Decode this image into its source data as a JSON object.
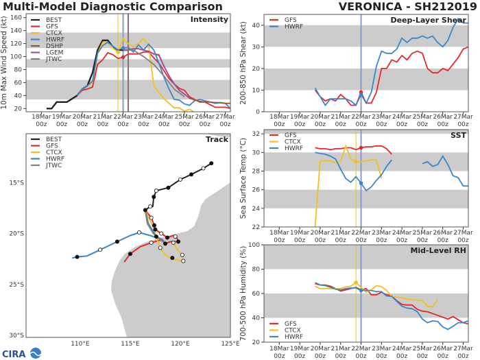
{
  "header": {
    "title": "Multi-Model Diagnostic Comparison",
    "storm": "VERONICA - SH212019"
  },
  "logo_text": "CIRA",
  "colors": {
    "BEST": "#222222",
    "GFS": "#e8262a",
    "CTCX": "#f2c01e",
    "HWRF": "#3a86c8",
    "DSHP": "#8b5a3c",
    "LGEM": "#a64ca6",
    "JTWC": "#808080",
    "band": "#cccccc",
    "vline_ctcx": "#f2c01e",
    "vline_hwrf": "#8a9cc4",
    "vline_other": "#8a6f72"
  },
  "x_axis": {
    "ticks": [
      "18Mar",
      "19Mar",
      "20Mar",
      "21Mar",
      "22Mar",
      "23Mar",
      "24Mar",
      "25Mar",
      "26Mar",
      "27Mar"
    ],
    "subticks": [
      "00z",
      "00z",
      "00z",
      "00z",
      "00z",
      "00z",
      "00z",
      "00z",
      "00z",
      "00z"
    ],
    "range": [
      "17Mar06z",
      "27Mar06z"
    ]
  },
  "chart_data": [
    {
      "id": "intensity",
      "type": "line",
      "title": "Intensity",
      "ylabel": "10m Max Wind Speed (kt)",
      "ylim": [
        15,
        166
      ],
      "yticks": [
        "20",
        "40",
        "60",
        "80",
        "100",
        "120",
        "140",
        "160"
      ],
      "bands": [
        [
          34,
          64
        ],
        [
          83,
          96
        ],
        [
          113,
          137
        ]
      ],
      "vlines": [
        {
          "t": "21Mar18z",
          "color": "vline_ctcx"
        },
        {
          "t": "22Mar00z",
          "color": "vline_hwrf"
        },
        {
          "t": "22Mar06z",
          "color": "vline_other"
        }
      ],
      "legend": [
        "BEST",
        "GFS",
        "CTCX",
        "HWRF",
        "DSHP",
        "LGEM",
        "JTWC"
      ],
      "series": [
        {
          "name": "BEST",
          "t0": "18Mar06z",
          "step_h": 6,
          "values": [
            20,
            20,
            30,
            30,
            30,
            35,
            40,
            50,
            55,
            75,
            110,
            125,
            125,
            115,
            110,
            110,
            110
          ]
        },
        {
          "name": "GFS",
          "t0": "19Mar18z",
          "step_h": 6,
          "values": [
            40,
            48,
            50,
            53,
            88,
            95,
            106,
            103,
            97,
            99,
            104,
            104,
            104,
            107,
            107,
            98,
            90,
            78,
            66,
            58,
            51,
            48,
            38,
            34,
            30,
            30,
            26,
            22,
            22,
            22,
            20
          ],
          "marker_at": "22Mar00z"
        },
        {
          "name": "CTCX",
          "t0": "19Mar18z",
          "step_h": 6,
          "values": [
            40,
            50,
            55,
            60,
            105,
            122,
            122,
            113,
            107,
            128,
            120,
            115,
            120,
            128,
            118,
            55,
            45,
            35,
            28,
            21,
            21,
            16,
            19,
            14
          ],
          "marker_at": "21Mar18z"
        },
        {
          "name": "HWRF",
          "t0": "19Mar18z",
          "step_h": 6,
          "values": [
            40,
            50,
            55,
            62,
            105,
            117,
            122,
            116,
            110,
            113,
            114,
            107,
            118,
            110,
            119,
            110,
            90,
            68,
            50,
            34,
            33,
            27,
            25,
            32,
            34,
            32,
            30,
            28,
            29,
            28,
            20
          ],
          "marker_at": "22Mar00z"
        },
        {
          "name": "DSHP",
          "t0": "22Mar00z",
          "step_h": 6,
          "values": [
            110,
            111,
            112,
            112,
            110,
            108,
            104,
            102,
            85,
            70,
            58,
            48,
            42,
            36,
            33,
            31,
            30,
            30,
            29,
            29,
            28,
            28
          ]
        },
        {
          "name": "LGEM",
          "t0": "22Mar00z",
          "step_h": 6,
          "values": [
            110,
            111,
            112,
            112,
            110,
            108,
            104,
            103,
            85,
            70,
            58,
            48,
            42,
            36
          ]
        },
        {
          "name": "JTWC",
          "t0": "22Mar00z",
          "step_h": 12,
          "values": [
            110,
            110,
            100,
            88,
            70,
            50,
            38
          ]
        }
      ]
    },
    {
      "id": "shear",
      "type": "line",
      "title": "Deep-Layer Shear",
      "ylabel": "200-850 hPa Shear (kt)",
      "ylim": [
        0,
        45
      ],
      "yticks": [
        "0",
        "10",
        "20",
        "30",
        "40"
      ],
      "bands": [
        [
          10,
          20
        ],
        [
          30,
          40
        ]
      ],
      "vlines": [
        {
          "t": "22Mar00z",
          "color": "vline_hwrf"
        }
      ],
      "legend": [
        "GFS",
        "HWRF"
      ],
      "series": [
        {
          "name": "GFS",
          "t0": "19Mar18z",
          "step_h": 6,
          "values": [
            10,
            7,
            5,
            6,
            5,
            8,
            6,
            3,
            3,
            9,
            4,
            4,
            9,
            20,
            20,
            24,
            23,
            26,
            24,
            27,
            28,
            27,
            20,
            18,
            18,
            20,
            19,
            22,
            25,
            29,
            30
          ],
          "marker_at": "22Mar00z"
        },
        {
          "name": "HWRF",
          "t0": "19Mar18z",
          "step_h": 6,
          "values": [
            11,
            7,
            3,
            6,
            6,
            6,
            6,
            5,
            3,
            8,
            4,
            9,
            21,
            28,
            27,
            27,
            29,
            34,
            32,
            34,
            34,
            35,
            34,
            35,
            32,
            30,
            33,
            39,
            43,
            41,
            41
          ],
          "marker_at": "22Mar00z"
        }
      ]
    },
    {
      "id": "sst",
      "type": "line",
      "title": "SST",
      "ylabel": "Sea Surface Temp (°C)",
      "ylim": [
        22,
        32.45
      ],
      "yticks": [
        "22",
        "24",
        "26",
        "28",
        "30",
        "32"
      ],
      "bands": [
        [
          24,
          26
        ],
        [
          28,
          30
        ],
        [
          32,
          32.45
        ]
      ],
      "vlines": [
        {
          "t": "21Mar18z",
          "color": "vline_ctcx"
        },
        {
          "t": "22Mar00z",
          "color": "vline_hwrf"
        }
      ],
      "legend": [
        "GFS",
        "CTCX",
        "HWRF"
      ],
      "series": [
        {
          "name": "GFS",
          "t0": "19Mar18z",
          "step_h": 6,
          "values": [
            30.5,
            30.4,
            30.4,
            30.3,
            30.4,
            30.4,
            30.5,
            30.5,
            30.3,
            30.5,
            30.6,
            30.6,
            30.7,
            30.7,
            30.4,
            29.8
          ],
          "marker_at": "22Mar00z"
        },
        {
          "name": "CTCX",
          "t0": "19Mar18z",
          "step_h": 6,
          "values": [
            22,
            29.1,
            29.1,
            29.1,
            28.9,
            29.0,
            30.7,
            29.3,
            29.0,
            29.0,
            29.1,
            29.2,
            29.2,
            27.2
          ],
          "marker_at": "21Mar18z"
        },
        {
          "name": "HWRF",
          "t0": "19Mar18z",
          "step_h": 6,
          "values": [
            30.0,
            29.9,
            29.8,
            29.6,
            29.3,
            28.2,
            27.2,
            26.8,
            27.4,
            26.7,
            25.9,
            26.3,
            27.0,
            27.6,
            28.5,
            29.2,
            null,
            null,
            null,
            null,
            null,
            28.8,
            29.0,
            28.5,
            28.7,
            29.6,
            28.7,
            27.5,
            27.3,
            26.4,
            26.4
          ],
          "marker_at": "22Mar00z"
        }
      ]
    },
    {
      "id": "rh",
      "type": "line",
      "title": "Mid-Level RH",
      "ylabel": "700-500 hPa Humidity (%)",
      "ylim": [
        20,
        100
      ],
      "yticks": [
        "20",
        "40",
        "60",
        "80",
        "100"
      ],
      "bands": [
        [
          40,
          60
        ],
        [
          80,
          100
        ]
      ],
      "vlines": [
        {
          "t": "21Mar18z",
          "color": "vline_ctcx"
        },
        {
          "t": "22Mar00z",
          "color": "vline_hwrf"
        }
      ],
      "legend": [
        "GFS",
        "CTCX",
        "HWRF"
      ],
      "series": [
        {
          "name": "GFS",
          "t0": "19Mar18z",
          "step_h": 6,
          "values": [
            68,
            67,
            67,
            66,
            64,
            62,
            63,
            64,
            65,
            63,
            64,
            59,
            59,
            61,
            59,
            58,
            54,
            51,
            50.5,
            50.5,
            47,
            45.5,
            45,
            43.5,
            42,
            40.5,
            39,
            41,
            38.5,
            36,
            35
          ]
        },
        {
          "name": "CTCX",
          "t0": "19Mar18z",
          "step_h": 6,
          "values": [
            66,
            64,
            64,
            64,
            64,
            64,
            65.5,
            66,
            69,
            65,
            61,
            63,
            66.5,
            65.5,
            62.5,
            57.5,
            57,
            56.5,
            55.5,
            55,
            54.5,
            54,
            49.5,
            49,
            55
          ],
          "marker_at": "21Mar18z"
        },
        {
          "name": "HWRF",
          "t0": "19Mar18z",
          "step_h": 6,
          "values": [
            69,
            67,
            66.5,
            65,
            63.5,
            63,
            64,
            64.5,
            64.5,
            62.5,
            62.5,
            62.5,
            61.5,
            61.5,
            58,
            57.5,
            53.5,
            49.5,
            48,
            47.5,
            45,
            39,
            36,
            37.5,
            37,
            32.5,
            30.5,
            33,
            36,
            36,
            37.5
          ],
          "marker_at": "22Mar00z"
        }
      ]
    },
    {
      "id": "track",
      "type": "map-track",
      "title": "Track",
      "lon_range": [
        104.6,
        125
      ],
      "lat_range": [
        -30.2,
        -10.2
      ],
      "xticks": [
        {
          "v": 110,
          "label": "110°E"
        },
        {
          "v": 115,
          "label": "115°E"
        },
        {
          "v": 120,
          "label": "120°E"
        },
        {
          "v": 125,
          "label": "125°E"
        }
      ],
      "yticks": [
        {
          "v": -15,
          "label": "15°S"
        },
        {
          "v": -20,
          "label": "20°S"
        },
        {
          "v": -25,
          "label": "25°S"
        },
        {
          "v": -30,
          "label": "30°S"
        }
      ],
      "legend": [
        "BEST",
        "GFS",
        "CTCX",
        "HWRF",
        "JTWC"
      ],
      "series": [
        {
          "name": "BEST",
          "points": [
            [
              123.1,
              -13.1
            ],
            [
              122.3,
              -13.6
            ],
            [
              121.1,
              -14.2
            ],
            [
              120.0,
              -14.7
            ],
            [
              118.8,
              -15.5
            ],
            [
              117.6,
              -15.8
            ],
            [
              117.35,
              -16.4
            ],
            [
              117.25,
              -17.35
            ],
            [
              117.0,
              -17.35
            ],
            [
              116.5,
              -17.7
            ]
          ],
          "markers": [
            [
              123.1,
              -13.1,
              "filled"
            ],
            [
              122.3,
              -13.6,
              "open"
            ],
            [
              121.1,
              -14.2,
              "filled"
            ],
            [
              120.0,
              -14.7,
              "open"
            ],
            [
              118.8,
              -15.5,
              "filled"
            ],
            [
              117.6,
              -15.8,
              "open"
            ],
            [
              117.35,
              -16.4,
              "filled"
            ],
            [
              117.0,
              -17.35,
              "open"
            ],
            [
              116.5,
              -17.7,
              "filled"
            ]
          ]
        },
        {
          "name": "GFS",
          "points": [
            [
              116.5,
              -17.7
            ],
            [
              117.1,
              -18.45
            ],
            [
              117.4,
              -19.2
            ],
            [
              117.5,
              -19.6
            ],
            [
              118.1,
              -20.0
            ],
            [
              118.7,
              -20.4
            ],
            [
              119.3,
              -20.2
            ],
            [
              119.6,
              -20.3
            ],
            [
              119.8,
              -20.8
            ],
            [
              119.0,
              -20.8
            ],
            [
              118.5,
              -21.0
            ],
            [
              118.2,
              -20.6
            ],
            [
              117.1,
              -20.9
            ],
            [
              116.0,
              -21.3
            ],
            [
              115.0,
              -22.0
            ],
            [
              114.4,
              -22.8
            ]
          ],
          "markers": [
            [
              117.1,
              -18.45,
              "open"
            ],
            [
              117.4,
              -19.2,
              "filled"
            ],
            [
              117.5,
              -19.6,
              "filled"
            ],
            [
              118.1,
              -20.0,
              "open"
            ],
            [
              118.7,
              -20.4,
              "filled"
            ],
            [
              119.5,
              -20.3,
              "open"
            ],
            [
              119.8,
              -20.8,
              "filled"
            ],
            [
              118.5,
              -21.0,
              "filled"
            ],
            [
              117.1,
              -20.9,
              "open"
            ],
            [
              115.0,
              -22.0,
              "filled"
            ]
          ]
        },
        {
          "name": "CTCX",
          "points": [
            [
              116.5,
              -17.7
            ],
            [
              116.9,
              -18.6
            ],
            [
              117.4,
              -19.6
            ],
            [
              117.6,
              -20.4
            ],
            [
              118.0,
              -21.4
            ],
            [
              118.5,
              -22.1
            ],
            [
              119.2,
              -22.5
            ],
            [
              120.3,
              -22.7
            ],
            [
              120.2,
              -22.1
            ],
            [
              119.8,
              -21.7
            ],
            [
              119.3,
              -20.9
            ]
          ],
          "markers": [
            [
              118.0,
              -21.4,
              "open"
            ],
            [
              119.2,
              -22.4,
              "filled"
            ],
            [
              120.3,
              -22.7,
              "open"
            ],
            [
              120.2,
              -22.1,
              "open"
            ],
            [
              119.3,
              -20.9,
              "open"
            ]
          ]
        },
        {
          "name": "HWRF",
          "points": [
            [
              116.5,
              -17.7
            ],
            [
              116.8,
              -19.0
            ],
            [
              117.6,
              -20.3
            ],
            [
              118.2,
              -20.6
            ],
            [
              117.0,
              -20.2
            ],
            [
              115.9,
              -19.9
            ],
            [
              115.0,
              -20.2
            ],
            [
              113.7,
              -20.8
            ],
            [
              112.0,
              -21.6
            ],
            [
              110.7,
              -22.2
            ],
            [
              109.7,
              -22.3
            ],
            [
              109.2,
              -22.4
            ]
          ],
          "markers": [
            [
              117.6,
              -20.3,
              "filled"
            ],
            [
              115.9,
              -19.9,
              "open"
            ],
            [
              113.7,
              -20.8,
              "filled"
            ],
            [
              112.0,
              -21.6,
              "open"
            ],
            [
              109.7,
              -22.3,
              "filled"
            ]
          ]
        },
        {
          "name": "JTWC",
          "points": [
            [
              116.5,
              -17.7
            ],
            [
              116.7,
              -19.0
            ],
            [
              117.3,
              -20.0
            ],
            [
              118.0,
              -20.6
            ],
            [
              118.5,
              -21.0
            ]
          ],
          "markers": []
        }
      ]
    }
  ]
}
